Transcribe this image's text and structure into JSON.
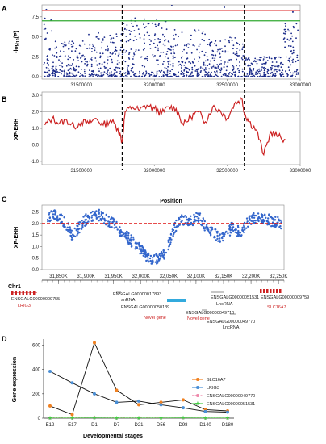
{
  "panels": {
    "a": "A",
    "b": "B",
    "c": "C",
    "d": "D"
  },
  "chart_data": [
    {
      "type": "scatter",
      "panel": "A",
      "ylabel": "-log10(P)",
      "x_ticks": [
        31500000,
        32000000,
        32500000,
        33000000
      ],
      "y_ticks": [
        0.0,
        2.5,
        5.0,
        7.5
      ],
      "xlim": [
        31230000,
        33000000
      ],
      "ylim": [
        -0.3,
        9.0
      ],
      "threshold_lines": [
        {
          "y": 8.3,
          "color": "#dd2222"
        },
        {
          "y": 7.0,
          "color": "#33aa33"
        }
      ],
      "marker_color": "#1a2a8a",
      "vertical_lines_x": [
        31780000,
        32620000
      ]
    },
    {
      "type": "line",
      "panel": "B",
      "ylabel": "XP-EHH",
      "x_ticks": [
        31500000,
        32000000,
        32500000,
        33000000
      ],
      "y_ticks": [
        -1.0,
        0.0,
        1.0,
        2.0,
        3.0
      ],
      "xlim": [
        31230000,
        33000000
      ],
      "ylim": [
        -1.2,
        3.2
      ],
      "threshold": 2.0,
      "line_color": "#cc2222",
      "vertical_lines_x": [
        31780000,
        32620000
      ],
      "x": [
        31250000,
        31300000,
        31350000,
        31400000,
        31450000,
        31500000,
        31550000,
        31600000,
        31650000,
        31700000,
        31750000,
        31780000,
        31800000,
        31850000,
        31900000,
        31950000,
        32000000,
        32050000,
        32100000,
        32150000,
        32200000,
        32250000,
        32300000,
        32350000,
        32400000,
        32450000,
        32500000,
        32550000,
        32600000,
        32620000,
        32650000,
        32700000,
        32750000,
        32800000,
        32850000,
        32900000
      ],
      "y": [
        1.2,
        1.6,
        1.3,
        1.5,
        1.1,
        1.4,
        1.3,
        1.6,
        1.2,
        1.5,
        1.0,
        0.2,
        2.0,
        2.3,
        2.1,
        2.4,
        2.2,
        1.9,
        2.3,
        2.2,
        1.2,
        1.7,
        2.0,
        1.4,
        2.3,
        2.1,
        1.6,
        2.5,
        2.8,
        1.9,
        1.4,
        0.9,
        -0.6,
        0.8,
        0.5,
        0.3
      ]
    },
    {
      "type": "scatter",
      "panel": "C",
      "title": "Position",
      "ylabel": "XP-EHH",
      "y_ticks": [
        0.0,
        0.5,
        1.0,
        1.5,
        2.0,
        2.5
      ],
      "ylim": [
        0.0,
        2.8
      ],
      "threshold": 2.0,
      "marker_color": "#3366cc",
      "threshold_color": "#dd1111",
      "x_ticks": [
        "31,850K",
        "31,900K",
        "31,950K",
        "32,000K",
        "32,050K",
        "32,100K",
        "32,150K",
        "32,200K",
        "32,250K"
      ],
      "x_tick_values": [
        31850000,
        31900000,
        31950000,
        32000000,
        32050000,
        32100000,
        32150000,
        32200000,
        32250000
      ],
      "xlim": [
        31820000,
        32260000
      ],
      "x": [
        31830000,
        31845000,
        31860000,
        31875000,
        31890000,
        31905000,
        31920000,
        31935000,
        31950000,
        31965000,
        31980000,
        31995000,
        32005000,
        32015000,
        32030000,
        32045000,
        32060000,
        32075000,
        32090000,
        32105000,
        32120000,
        32135000,
        32150000,
        32165000,
        32180000,
        32195000,
        32210000,
        32225000,
        32240000,
        32255000
      ],
      "y": [
        2.2,
        2.4,
        2.1,
        1.5,
        1.9,
        2.3,
        2.4,
        2.2,
        2.0,
        1.6,
        1.3,
        1.0,
        0.7,
        0.5,
        0.4,
        0.8,
        1.8,
        2.2,
        2.1,
        2.3,
        1.7,
        1.5,
        1.4,
        1.8,
        1.6,
        2.1,
        2.3,
        2.2,
        2.1,
        2.0
      ],
      "chromosome_label": "Chr1",
      "genes": [
        {
          "id": "ENSGALG00000009755",
          "start": 31830000,
          "end": 31865000,
          "color": "#cc2222"
        },
        {
          "name": "LRIG3",
          "color": "#cc2222"
        },
        {
          "id": "ENSGALG00000017893",
          "type": "snRNA"
        },
        {
          "id": "ENSGALG00000050139"
        },
        {
          "name": "Novel gene",
          "color": "#cc2222"
        },
        {
          "id": "ENSGALG00000051531",
          "type": "LncRNA"
        },
        {
          "id": "ENSGALG00000049710"
        },
        {
          "name": "Novel gene",
          "color": "#cc2222"
        },
        {
          "id": "ENSGALG00000049770",
          "type": "LncRNA"
        },
        {
          "id": "ENSGALG00000009759"
        },
        {
          "name": "SLC16A7",
          "color": "#cc2222"
        }
      ]
    },
    {
      "type": "line",
      "panel": "D",
      "xlabel": "Developmental stages",
      "ylabel": "Gene expression",
      "categories": [
        "E12",
        "E17",
        "D1",
        "D7",
        "D21",
        "D56",
        "D98",
        "D140",
        "D180"
      ],
      "y_ticks": [
        0,
        200,
        400,
        600
      ],
      "ylim": [
        0,
        650
      ],
      "series": [
        {
          "name": "SLC16A7",
          "color": "#f08020",
          "values": [
            100,
            30,
            620,
            230,
            110,
            130,
            150,
            70,
            60
          ]
        },
        {
          "name": "LRIG3",
          "color": "#4a8fd6",
          "values": [
            385,
            290,
            200,
            130,
            140,
            110,
            85,
            55,
            50
          ]
        },
        {
          "name": "ENSGALG00000049770",
          "color": "#ee88aa",
          "values": [
            5,
            3,
            8,
            4,
            6,
            3,
            4,
            3,
            2
          ]
        },
        {
          "name": "ENSGALG00000051531",
          "color": "#44cc44",
          "values": [
            2,
            2,
            3,
            2,
            2,
            2,
            3,
            2,
            2
          ]
        }
      ]
    }
  ]
}
